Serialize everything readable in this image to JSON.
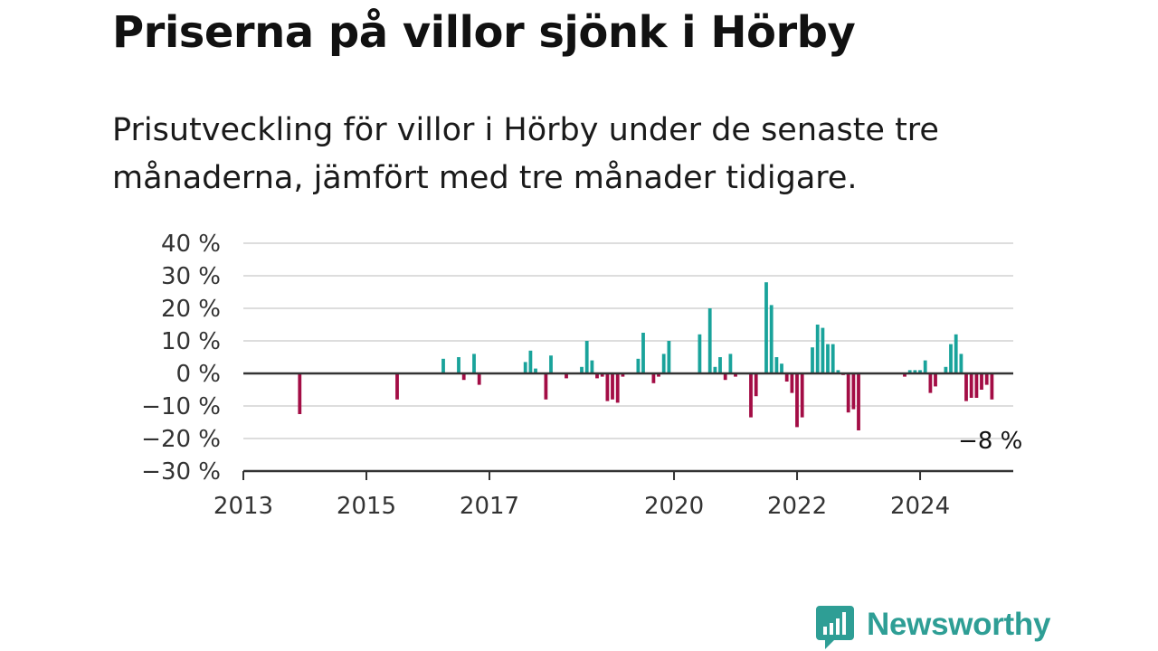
{
  "title": "Priserna på villor sjönk i Hörby",
  "subtitle": "Prisutveckling för villor i Hörby under de senaste tre månaderna, jämfört med tre månader tidigare.",
  "brand": {
    "name": "Newsworthy",
    "icon": "bar-chart-speech-bubble-icon"
  },
  "colors": {
    "positive": "#19a39b",
    "negative": "#a30d45",
    "grid": "#dddddd",
    "axis": "#333333"
  },
  "chart_data": {
    "type": "bar",
    "title": "",
    "xlabel": "",
    "ylabel": "",
    "ylim": [
      -30,
      40
    ],
    "xlim": [
      "2013-01",
      "2025-06"
    ],
    "grid": true,
    "y_ticks": [
      40,
      30,
      20,
      10,
      0,
      -10,
      -20,
      -30
    ],
    "y_tick_labels": [
      "40 %",
      "30 %",
      "20 %",
      "10 %",
      "0 %",
      "−10 %",
      "−20 %",
      "−30 %"
    ],
    "x_ticks": [
      "2013",
      "2015",
      "2017",
      "2020",
      "2022",
      "2024"
    ],
    "annotation": {
      "label": "−8 %",
      "x": "2025-03",
      "y": -8
    },
    "x": [
      "2013-12",
      "2015-07",
      "2016-04",
      "2016-07",
      "2016-08",
      "2016-10",
      "2016-11",
      "2017-08",
      "2017-09",
      "2017-10",
      "2017-12",
      "2018-01",
      "2018-04",
      "2018-07",
      "2018-08",
      "2018-09",
      "2018-10",
      "2018-11",
      "2018-12",
      "2019-01",
      "2019-02",
      "2019-03",
      "2019-06",
      "2019-07",
      "2019-09",
      "2019-10",
      "2019-11",
      "2019-12",
      "2020-06",
      "2020-08",
      "2020-09",
      "2020-10",
      "2020-11",
      "2020-12",
      "2021-01",
      "2021-04",
      "2021-05",
      "2021-07",
      "2021-08",
      "2021-09",
      "2021-10",
      "2021-11",
      "2021-12",
      "2022-01",
      "2022-02",
      "2022-04",
      "2022-05",
      "2022-06",
      "2022-07",
      "2022-08",
      "2022-09",
      "2022-10",
      "2022-11",
      "2022-12",
      "2023-01",
      "2023-10",
      "2023-11",
      "2023-12",
      "2024-01",
      "2024-02",
      "2024-03",
      "2024-04",
      "2024-06",
      "2024-07",
      "2024-08",
      "2024-09",
      "2024-10",
      "2024-11",
      "2024-12",
      "2025-01",
      "2025-02",
      "2025-03"
    ],
    "series": [
      {
        "values": [
          -12.5,
          -8,
          4.5,
          5,
          -2,
          6,
          -3.5,
          3.5,
          7,
          1.5,
          -8,
          5.5,
          -1.5,
          2,
          10,
          4,
          -1.5,
          -1,
          -8.5,
          -8,
          -9,
          -1,
          4.5,
          12.5,
          -3,
          -1,
          6,
          10,
          12,
          20,
          2,
          5,
          -2,
          6,
          -1,
          -13.5,
          -7,
          28,
          21,
          5,
          3,
          -2.5,
          -6,
          -16.5,
          -13.5,
          8,
          15,
          14,
          9,
          9,
          1,
          -0.5,
          -12,
          -11,
          -17.5,
          -1,
          1,
          1,
          1,
          4,
          -6,
          -4,
          2,
          9,
          12,
          6,
          -8.5,
          -7.5,
          -7.5,
          -5,
          -3.5,
          -8
        ]
      }
    ]
  }
}
